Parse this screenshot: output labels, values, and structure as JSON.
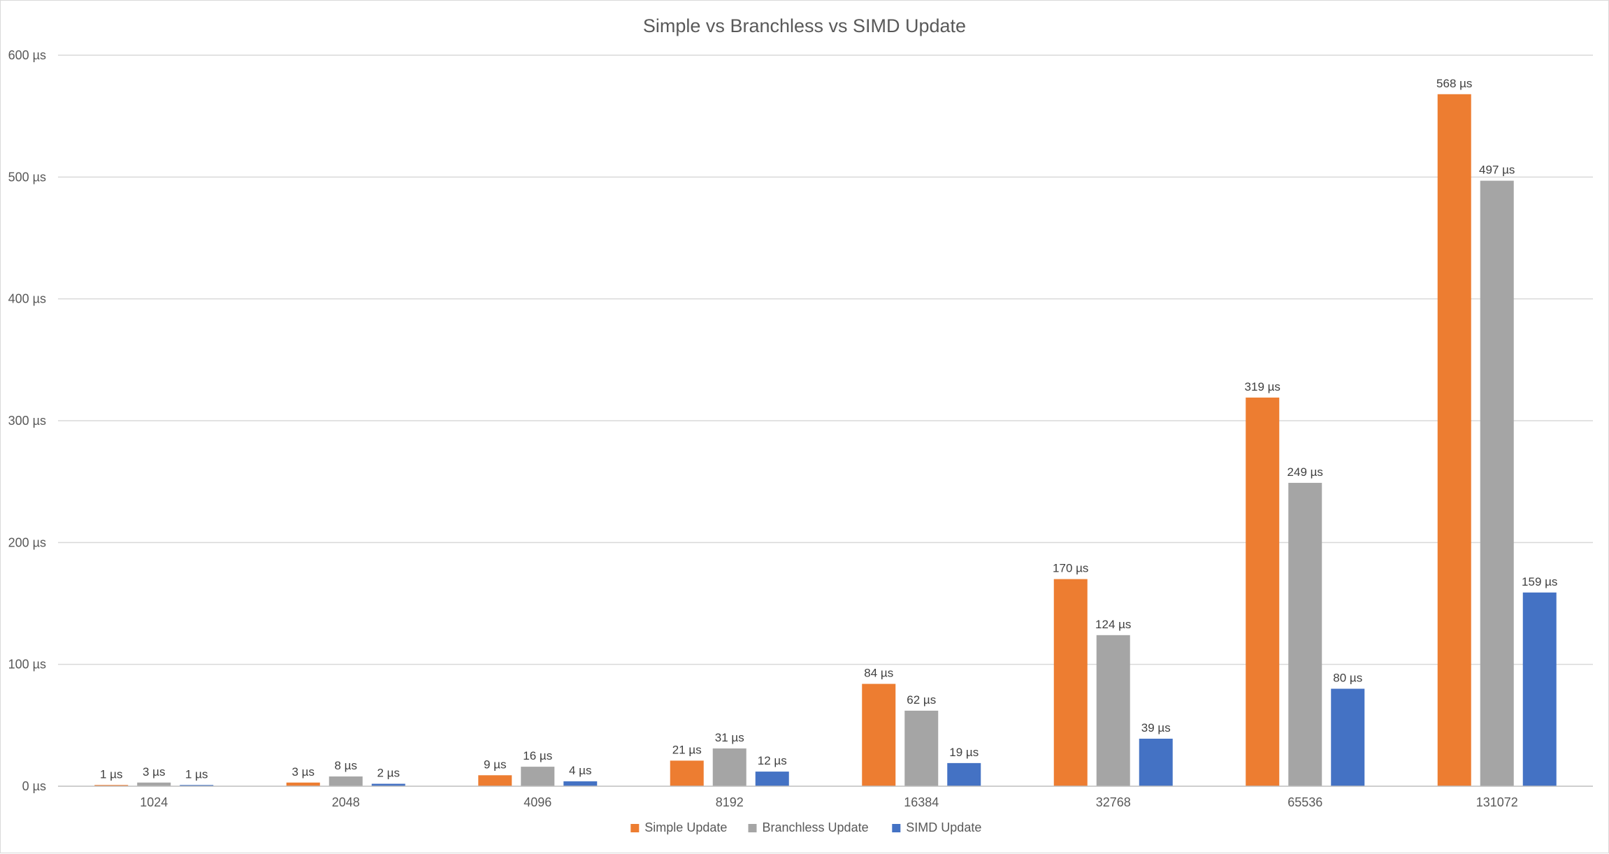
{
  "chart_data": {
    "type": "bar",
    "title": "Simple vs Branchless vs SIMD Update",
    "xlabel": "",
    "ylabel": "",
    "unit": "µs",
    "categories": [
      "1024",
      "2048",
      "4096",
      "8192",
      "16384",
      "32768",
      "65536",
      "131072"
    ],
    "series": [
      {
        "name": "Simple Update",
        "color": "#ED7D31",
        "values": [
          1,
          3,
          9,
          21,
          84,
          170,
          319,
          568
        ]
      },
      {
        "name": "Branchless Update",
        "color": "#A5A5A5",
        "values": [
          3,
          8,
          16,
          31,
          62,
          124,
          249,
          497
        ]
      },
      {
        "name": "SIMD Update",
        "color": "#4472C4",
        "values": [
          1,
          2,
          4,
          12,
          19,
          39,
          80,
          159
        ]
      }
    ],
    "ylim": [
      0,
      600
    ],
    "yticks": [
      0,
      100,
      200,
      300,
      400,
      500,
      600
    ],
    "ytick_labels": [
      "0 µs",
      "100 µs",
      "200 µs",
      "300 µs",
      "400 µs",
      "500 µs",
      "600 µs"
    ],
    "grid": true,
    "legend_position": "bottom"
  }
}
